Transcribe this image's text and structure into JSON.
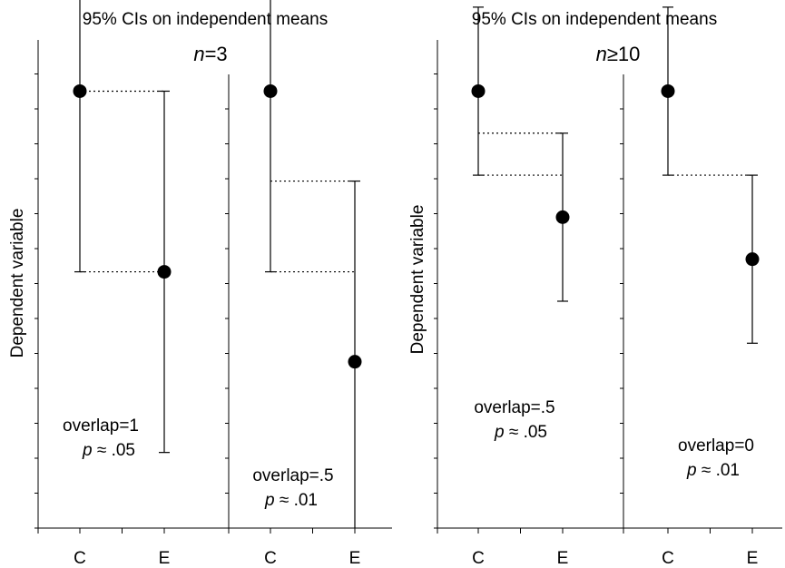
{
  "chart_data": [
    {
      "type": "scatter",
      "title": "95% CIs on independent means",
      "group_label": {
        "italic": "n",
        "rest": "=3"
      },
      "ylabel": "Dependent variable",
      "panels": [
        {
          "categories": [
            "C",
            "E"
          ],
          "points": [
            {
              "category": "C",
              "mean": 5.2,
              "ci_low": 3.05,
              "ci_high": 7.35
            },
            {
              "category": "E",
              "mean": 3.05,
              "ci_low": 0.9,
              "ci_high": 5.2
            }
          ],
          "overlap_lines": [
            5.2,
            3.05
          ],
          "annotation": {
            "overlap_text": "overlap=1",
            "p_italic": "p",
            "p_rest": " ≈ .05"
          }
        },
        {
          "categories": [
            "C",
            "E"
          ],
          "points": [
            {
              "category": "C",
              "mean": 5.2,
              "ci_low": 3.05,
              "ci_high": 7.35
            },
            {
              "category": "E",
              "mean": 1.98,
              "ci_low": -0.17,
              "ci_high": 4.13
            }
          ],
          "overlap_lines": [
            4.13,
            3.05
          ],
          "annotation": {
            "overlap_text": "overlap=.5",
            "p_italic": "p",
            "p_rest": " ≈ .01"
          }
        }
      ]
    },
    {
      "type": "scatter",
      "title": "95% CIs on independent means",
      "group_label": {
        "italic": "n",
        "rest": "≥10"
      },
      "ylabel": "Dependent variable",
      "panels": [
        {
          "categories": [
            "C",
            "E"
          ],
          "points": [
            {
              "category": "C",
              "mean": 5.2,
              "ci_low": 4.2,
              "ci_high": 6.2
            },
            {
              "category": "E",
              "mean": 3.7,
              "ci_low": 2.7,
              "ci_high": 4.7
            }
          ],
          "overlap_lines": [
            4.7,
            4.2
          ],
          "annotation": {
            "overlap_text": "overlap=.5",
            "p_italic": "p",
            "p_rest": " ≈ .05"
          }
        },
        {
          "categories": [
            "C",
            "E"
          ],
          "points": [
            {
              "category": "C",
              "mean": 5.2,
              "ci_low": 4.2,
              "ci_high": 6.2
            },
            {
              "category": "E",
              "mean": 3.2,
              "ci_low": 2.2,
              "ci_high": 4.2
            }
          ],
          "overlap_lines": [
            4.2
          ],
          "annotation": {
            "overlap_text": "overlap=0",
            "p_italic": "p",
            "p_rest": " ≈ .01"
          }
        }
      ]
    }
  ]
}
